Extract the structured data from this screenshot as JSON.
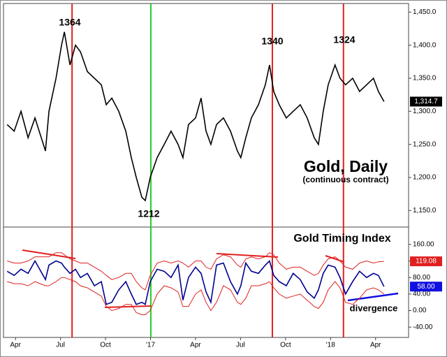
{
  "chart_data": [
    {
      "type": "line",
      "title": "Gold, Daily",
      "subtitle": "(continuous contract)",
      "annotations": [
        "1364",
        "1212",
        "1340",
        "1324"
      ],
      "x": [
        -0.56,
        -0.09,
        0.37,
        0.84,
        1.3,
        2.0,
        2.23,
        2.7,
        3.07,
        3.26,
        3.63,
        4.0,
        4.33,
        4.79,
        5.26,
        5.72,
        6.05,
        6.42,
        6.88,
        7.35,
        7.72,
        8.05,
        8.42,
        8.65,
        8.98,
        9.44,
        9.91,
        10.37,
        10.84,
        11.16,
        11.53,
        12.0,
        12.37,
        12.7,
        13.02,
        13.4,
        13.86,
        14.33,
        14.79,
        15.02,
        15.35,
        15.72,
        16.19,
        16.65,
        16.93,
        17.21,
        17.58,
        18.05,
        18.51,
        18.98,
        19.44,
        19.91,
        20.19,
        20.51,
        20.84,
        21.3,
        21.63,
        22.0,
        22.47,
        22.93,
        23.4,
        23.86,
        24.19,
        24.56
      ],
      "series": [
        {
          "color": "#000000",
          "last_label": "1,314.7",
          "label_color": "#000000",
          "values": [
            1280,
            1270,
            1300,
            1260,
            1290,
            1240,
            1300,
            1350,
            1400,
            1420,
            1370,
            1400,
            1390,
            1360,
            1350,
            1340,
            1310,
            1320,
            1300,
            1270,
            1230,
            1200,
            1170,
            1165,
            1200,
            1230,
            1250,
            1270,
            1250,
            1230,
            1280,
            1290,
            1320,
            1270,
            1250,
            1280,
            1290,
            1270,
            1240,
            1230,
            1260,
            1290,
            1310,
            1340,
            1370,
            1330,
            1310,
            1290,
            1300,
            1310,
            1290,
            1260,
            1250,
            1300,
            1340,
            1370,
            1350,
            1340,
            1350,
            1330,
            1340,
            1350,
            1330,
            1314.7
          ]
        }
      ],
      "xlim": [
        -0.8,
        26.2
      ],
      "ylim": [
        1125,
        1463
      ],
      "yticks": [
        {
          "value": 1150,
          "label": "1,150.0"
        },
        {
          "value": 1200,
          "label": "1,200.0"
        },
        {
          "value": 1250,
          "label": "1,250.0"
        },
        {
          "value": 1300,
          "label": "1,300.0"
        },
        {
          "value": 1350,
          "label": "1,350.0"
        },
        {
          "value": 1400,
          "label": "1,400.0"
        },
        {
          "value": 1450,
          "label": "1,450.0"
        }
      ],
      "vlines": [
        {
          "x": 3.77,
          "color": "#e02020"
        },
        {
          "x": 9.02,
          "color": "#22cc22"
        },
        {
          "x": 17.12,
          "color": "#e02020"
        },
        {
          "x": 21.86,
          "color": "#e02020"
        }
      ]
    },
    {
      "type": "line",
      "title": "Gold Timing Index",
      "annotations": [
        "divergence"
      ],
      "x": [
        -0.56,
        -0.09,
        0.37,
        0.84,
        1.3,
        2.0,
        2.23,
        2.7,
        3.07,
        3.26,
        3.63,
        4.0,
        4.33,
        4.79,
        5.26,
        5.72,
        6.05,
        6.42,
        6.88,
        7.35,
        7.72,
        8.05,
        8.42,
        8.65,
        8.98,
        9.44,
        9.91,
        10.37,
        10.84,
        11.16,
        11.53,
        12.0,
        12.37,
        12.7,
        13.02,
        13.4,
        13.86,
        14.33,
        14.79,
        15.02,
        15.35,
        15.72,
        16.19,
        16.65,
        16.93,
        17.21,
        17.58,
        18.05,
        18.51,
        18.98,
        19.44,
        19.91,
        20.19,
        20.51,
        20.84,
        21.3,
        21.63,
        22.0,
        22.47,
        22.93,
        23.4,
        23.86,
        24.19,
        24.56
      ],
      "series": [
        {
          "color": "#000090",
          "last_label": "58.00",
          "label_color": "#1010e0",
          "values": [
            95,
            85,
            100,
            90,
            120,
            75,
            110,
            120,
            115,
            105,
            90,
            100,
            80,
            90,
            60,
            70,
            15,
            20,
            50,
            70,
            40,
            15,
            20,
            15,
            70,
            100,
            95,
            80,
            110,
            25,
            80,
            105,
            90,
            45,
            20,
            110,
            115,
            70,
            40,
            60,
            115,
            95,
            90,
            110,
            120,
            85,
            70,
            60,
            90,
            75,
            45,
            30,
            50,
            90,
            110,
            105,
            80,
            40,
            70,
            95,
            80,
            90,
            85,
            58
          ]
        },
        {
          "color": "#e02020",
          "last_label": "119.08",
          "label_color": "#e02020",
          "values": [
            120,
            115,
            115,
            120,
            130,
            130,
            130,
            140,
            140,
            135,
            125,
            120,
            115,
            115,
            105,
            95,
            85,
            75,
            80,
            90,
            90,
            70,
            55,
            50,
            85,
            115,
            120,
            115,
            120,
            115,
            105,
            120,
            120,
            105,
            100,
            125,
            135,
            130,
            110,
            105,
            125,
            130,
            125,
            130,
            140,
            135,
            115,
            100,
            105,
            105,
            95,
            85,
            90,
            110,
            125,
            130,
            120,
            105,
            100,
            115,
            120,
            115,
            118,
            119.08
          ]
        },
        {
          "color": "#e02020",
          "values": [
            70,
            65,
            65,
            60,
            70,
            60,
            60,
            70,
            80,
            80,
            75,
            70,
            60,
            55,
            45,
            35,
            10,
            0,
            5,
            15,
            15,
            -5,
            -10,
            -10,
            0,
            40,
            60,
            55,
            45,
            10,
            10,
            40,
            50,
            20,
            0,
            20,
            60,
            50,
            20,
            15,
            30,
            60,
            60,
            65,
            70,
            55,
            40,
            30,
            35,
            40,
            25,
            10,
            5,
            20,
            50,
            70,
            55,
            20,
            15,
            30,
            50,
            55,
            50,
            40
          ]
        }
      ],
      "xlim": [
        -0.8,
        26.2
      ],
      "ylim": [
        -65,
        202
      ],
      "yticks": [
        {
          "value": -40,
          "label": "-40.00"
        },
        {
          "value": 0,
          "label": "0.00"
        },
        {
          "value": 40,
          "label": "40.00"
        },
        {
          "value": 80,
          "label": "80.00"
        },
        {
          "value": 120,
          "label": "120.00"
        },
        {
          "value": 160,
          "label": "160.00"
        }
      ],
      "xticks": [
        {
          "value": 0,
          "label": "Apr"
        },
        {
          "value": 3,
          "label": "Jul"
        },
        {
          "value": 6,
          "label": "Oct"
        },
        {
          "value": 9,
          "label": "'17"
        },
        {
          "value": 12,
          "label": "Apr"
        },
        {
          "value": 15,
          "label": "Jul"
        },
        {
          "value": 18,
          "label": "Oct"
        },
        {
          "value": 21,
          "label": "'18"
        },
        {
          "value": 24,
          "label": "Apr"
        }
      ]
    }
  ]
}
